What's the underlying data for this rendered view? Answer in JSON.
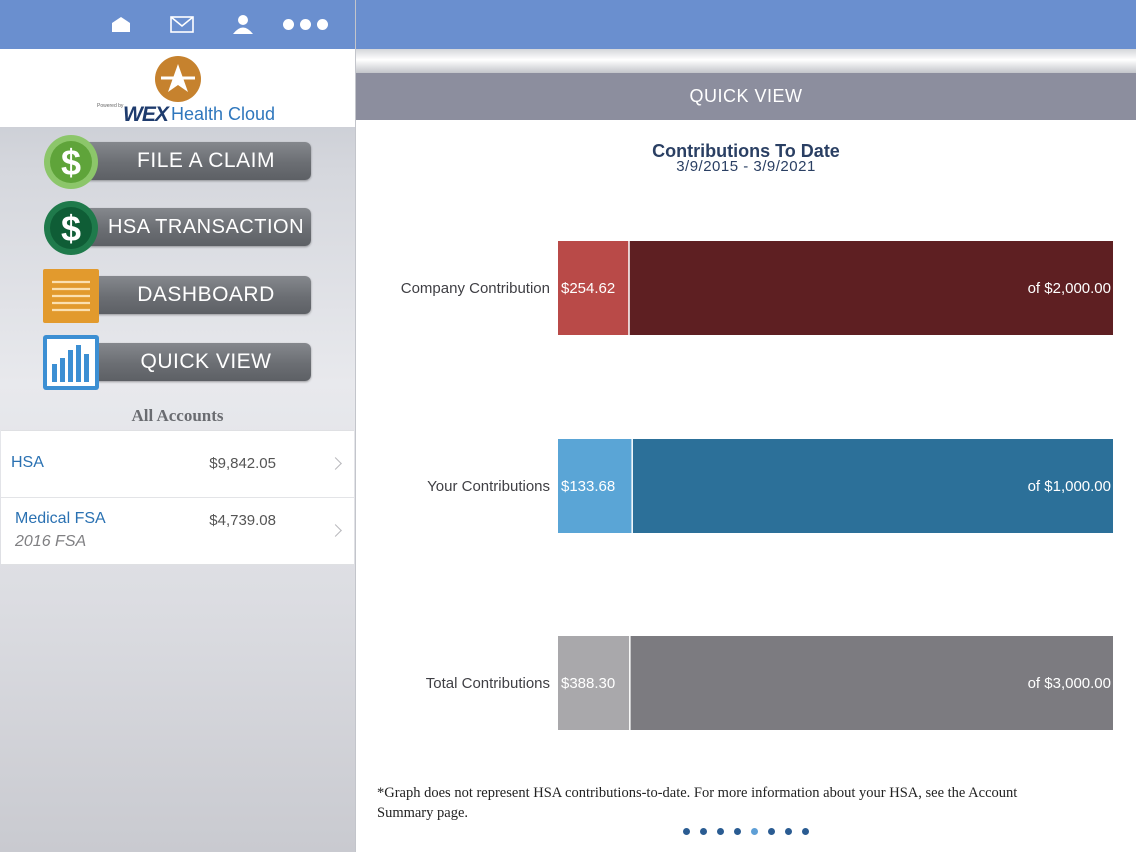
{
  "sidebar": {
    "topbar_icons": [
      "home-icon",
      "mail-icon",
      "profile-icon",
      "more-dots-icon"
    ],
    "logo": {
      "powered_by": "Powered by",
      "brand": "WEX",
      "product": "Health Cloud"
    },
    "nav": [
      {
        "label": "FILE A CLAIM",
        "icon": "dollar-light-green-icon"
      },
      {
        "label": "HSA TRANSACTION",
        "icon": "dollar-dark-green-icon"
      },
      {
        "label": "DASHBOARD",
        "icon": "receipt-icon"
      },
      {
        "label": "QUICK VIEW",
        "icon": "bar-chart-icon"
      }
    ],
    "accounts_title": "All Accounts",
    "accounts": [
      {
        "name": "HSA",
        "amount": "$9,842.05",
        "sub": ""
      },
      {
        "name": "Medical FSA",
        "amount": "$4,739.08",
        "sub": "2016 FSA"
      }
    ]
  },
  "main": {
    "header": "QUICK VIEW",
    "footnote": "*Graph does not represent HSA contributions-to-date. For more information about your HSA, see the Account Summary page.",
    "pager": {
      "count": 8,
      "active": 4
    }
  },
  "chart_data": {
    "type": "bar",
    "title": "Contributions To Date",
    "subtitle": "3/9/2015 - 3/9/2021",
    "categories": [
      "Company Contribution",
      "Your Contributions",
      "Total Contributions"
    ],
    "series": [
      {
        "name": "contributed",
        "values": [
          254.62,
          133.68,
          388.3
        ]
      },
      {
        "name": "limit",
        "values": [
          2000.0,
          1000.0,
          3000.0
        ]
      }
    ],
    "value_labels": [
      "$254.62",
      "$133.68",
      "$388.30"
    ],
    "limit_labels": [
      "of $2,000.00",
      "of $1,000.00",
      "of $3,000.00"
    ],
    "colors": [
      {
        "light": "#b94a48",
        "dark": "#5e1f22"
      },
      {
        "light": "#5aa5d6",
        "dark": "#2c7099"
      },
      {
        "light": "#a9a8ab",
        "dark": "#7c7b80"
      }
    ]
  }
}
